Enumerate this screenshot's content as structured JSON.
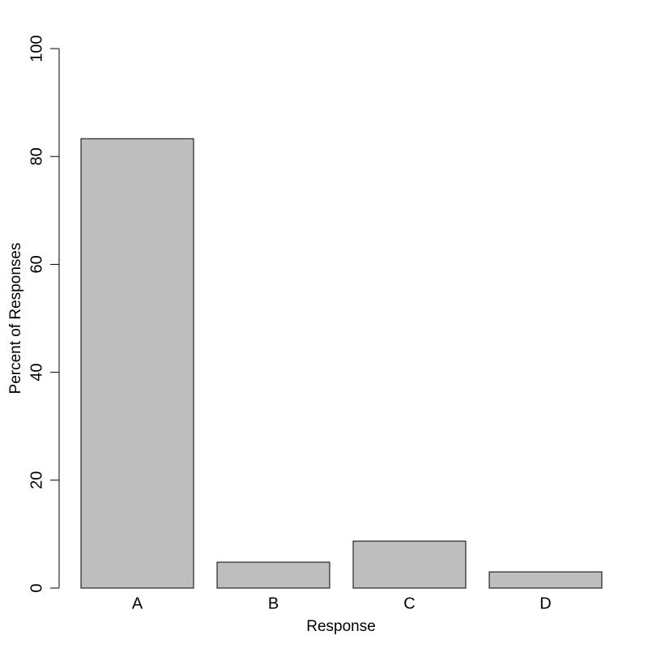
{
  "chart_data": {
    "type": "bar",
    "x_label": "Response",
    "y_label": "Percent of Responses",
    "categories": [
      "A",
      "B",
      "C",
      "D"
    ],
    "values": [
      83.3,
      4.8,
      8.7,
      3.0
    ],
    "color": "#bebebe",
    "ylim": [
      0,
      100
    ],
    "yticks": [
      0,
      20,
      40,
      60,
      80,
      100
    ]
  }
}
